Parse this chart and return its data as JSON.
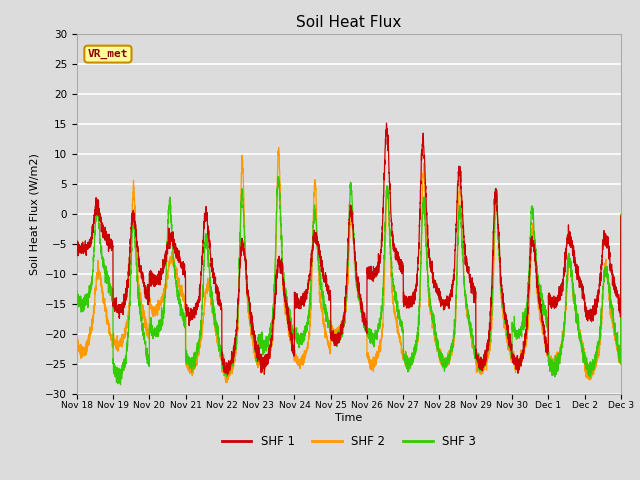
{
  "title": "Soil Heat Flux",
  "ylabel": "Soil Heat Flux (W/m2)",
  "xlabel": "Time",
  "ylim": [
    -30,
    30
  ],
  "yticks": [
    -30,
    -25,
    -20,
    -15,
    -10,
    -5,
    0,
    5,
    10,
    15,
    20,
    25,
    30
  ],
  "plot_background": "#dcdcdc",
  "grid_color": "#ffffff",
  "legend_labels": [
    "SHF 1",
    "SHF 2",
    "SHF 3"
  ],
  "legend_colors": [
    "#cc0000",
    "#ff9900",
    "#33cc00"
  ],
  "annotation_text": "VR_met",
  "annotation_box_facecolor": "#ffff99",
  "annotation_box_edgecolor": "#cc8800",
  "x_tick_labels": [
    "Nov 18",
    "Nov 19",
    "Nov 20",
    "Nov 21",
    "Nov 22",
    "Nov 23",
    "Nov 24",
    "Nov 25",
    "Nov 26",
    "Nov 27",
    "Nov 28",
    "Nov 29",
    "Nov 30",
    "Dec 1",
    "Dec 2",
    "Dec 3"
  ],
  "num_days": 15,
  "ppd": 288
}
